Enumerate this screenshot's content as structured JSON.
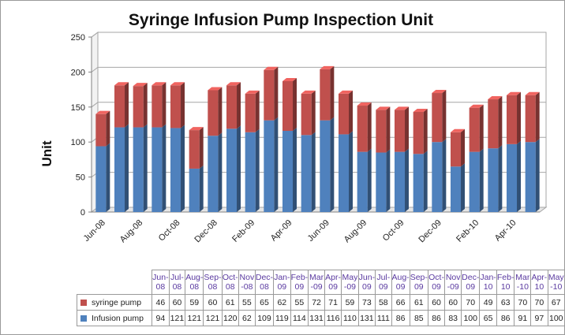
{
  "chart_data": {
    "type": "bar",
    "stacked": true,
    "title": "Syringe Infusion Pump Inspection Unit",
    "ylabel": "Unit",
    "xlabel": "",
    "ylim": [
      0,
      250
    ],
    "yticks": [
      0,
      50,
      100,
      150,
      200,
      250
    ],
    "grid": true,
    "categories": [
      "Jun-08",
      "Jul-08",
      "Aug-08",
      "Sep-08",
      "Oct-08",
      "Nov-08",
      "Dec-08",
      "Jan-09",
      "Feb-09",
      "Mar-09",
      "Apr-09",
      "May-09",
      "Jun-09",
      "Jul-09",
      "Aug-09",
      "Sep-09",
      "Oct-09",
      "Nov-09",
      "Dec-09",
      "Jan-10",
      "Feb-10",
      "Mar-10",
      "Apr-10",
      "May-10"
    ],
    "axis_labels": [
      "Jun-08",
      "Aug-08",
      "Oct-08",
      "Dec-08",
      "Feb-09",
      "Apr-09",
      "Jun-09",
      "Aug-09",
      "Oct-09",
      "Dec-09",
      "Feb-10",
      "Apr-10"
    ],
    "table_headers": [
      "Jun-\n08",
      "Jul-\n08",
      "Aug-\n08",
      "Sep-\n08",
      "Oct-\n08",
      "Nov\n-08",
      "Dec-\n08",
      "Jan-\n09",
      "Feb-\n09",
      "Mar\n-09",
      "Apr-\n09",
      "May\n-09",
      "Jun-\n09",
      "Jul-\n09",
      "Aug-\n09",
      "Sep-\n09",
      "Oct-\n09",
      "Nov\n-09",
      "Dec-\n09",
      "Jan-\n10",
      "Feb-\n10",
      "Mar\n-10",
      "Apr-\n10",
      "May\n-10"
    ],
    "series": [
      {
        "name": "Infusion pump",
        "color": "#4f81bd",
        "values": [
          94,
          121,
          121,
          121,
          120,
          62,
          109,
          119,
          114,
          131,
          116,
          110,
          131,
          111,
          86,
          85,
          86,
          83,
          100,
          65,
          86,
          91,
          97,
          100
        ]
      },
      {
        "name": "syringe pump",
        "color": "#c0504d",
        "values": [
          46,
          60,
          59,
          60,
          61,
          55,
          65,
          62,
          55,
          72,
          71,
          59,
          73,
          58,
          66,
          61,
          60,
          60,
          70,
          49,
          63,
          70,
          70,
          67
        ]
      }
    ]
  }
}
